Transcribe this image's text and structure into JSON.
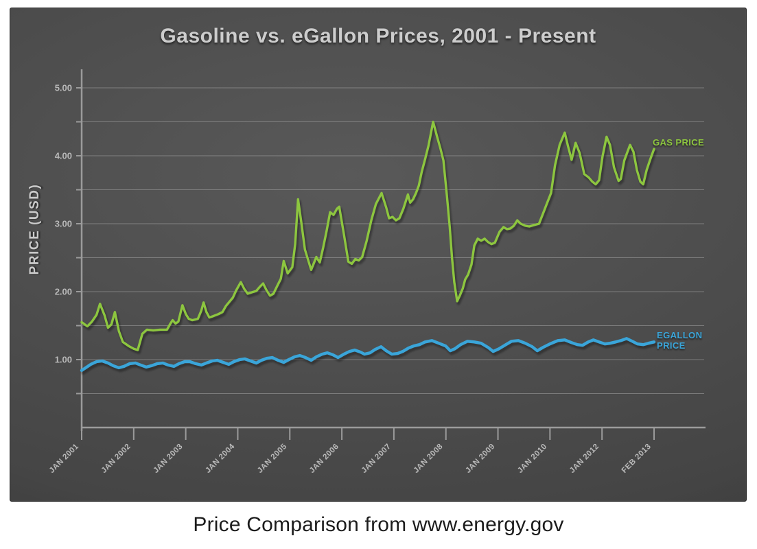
{
  "title": "Gasoline vs. eGallon Prices, 2001 - Present",
  "caption": "Price Comparison from www.energy.gov",
  "colors": {
    "gas": "#8dc63f",
    "egallon": "#3aa5d9",
    "grid": "rgba(255,255,255,0.27)",
    "axis": "#9b9b9b",
    "tick_label": "#b9b9b9",
    "title_text": "#cdcdcd",
    "page_bg": "#ffffff",
    "panel_bg": "#4a4a4a",
    "caption_text": "#1c1c1c"
  },
  "chart_data": {
    "type": "line",
    "title": "Gasoline vs. eGallon Prices, 2001 - Present",
    "xlabel": "",
    "ylabel": "PRICE (USD)",
    "ylim": [
      0,
      5.35
    ],
    "grid": true,
    "grid_step": 0.5,
    "legend_position": "end-of-line labels",
    "x_note": "12 evenly spaced ticks; year 2011 omitted between JAN 2010 and JAN 2012",
    "x_ticks": [
      "JAN 2001",
      "JAN 2002",
      "JAN 2003",
      "JAN 2004",
      "JAN 2005",
      "JAN 2006",
      "JAN 2007",
      "JAN 2008",
      "JAN 2009",
      "JAN 2010",
      "JAN 2012",
      "FEB 2013"
    ],
    "y_ticks": [
      {
        "value": 1,
        "label": "1.00"
      },
      {
        "value": 2,
        "label": "2.00"
      },
      {
        "value": 3,
        "label": "3.00"
      },
      {
        "value": 4,
        "label": "4.00"
      },
      {
        "value": 5,
        "label": "5.00"
      }
    ],
    "series": [
      {
        "name": "GAS PRICE",
        "color": "#8dc63f",
        "x_frac": [
          0.0,
          0.01,
          0.018,
          0.026,
          0.032,
          0.04,
          0.046,
          0.052,
          0.058,
          0.065,
          0.072,
          0.082,
          0.091,
          0.098,
          0.106,
          0.114,
          0.125,
          0.137,
          0.149,
          0.155,
          0.159,
          0.164,
          0.169,
          0.176,
          0.182,
          0.187,
          0.193,
          0.203,
          0.209,
          0.213,
          0.218,
          0.223,
          0.23,
          0.239,
          0.246,
          0.252,
          0.259,
          0.264,
          0.27,
          0.278,
          0.284,
          0.29,
          0.297,
          0.305,
          0.311,
          0.317,
          0.323,
          0.329,
          0.335,
          0.342,
          0.348,
          0.353,
          0.36,
          0.368,
          0.373,
          0.378,
          0.384,
          0.39,
          0.401,
          0.41,
          0.416,
          0.422,
          0.428,
          0.434,
          0.44,
          0.446,
          0.45,
          0.458,
          0.466,
          0.472,
          0.478,
          0.484,
          0.49,
          0.498,
          0.506,
          0.514,
          0.524,
          0.532,
          0.537,
          0.543,
          0.549,
          0.555,
          0.562,
          0.57,
          0.574,
          0.579,
          0.584,
          0.589,
          0.594,
          0.6,
          0.606,
          0.614,
          0.621,
          0.627,
          0.632,
          0.638,
          0.643,
          0.647,
          0.651,
          0.656,
          0.661,
          0.666,
          0.67,
          0.675,
          0.681,
          0.686,
          0.692,
          0.698,
          0.704,
          0.71,
          0.716,
          0.722,
          0.73,
          0.737,
          0.743,
          0.749,
          0.755,
          0.761,
          0.767,
          0.775,
          0.782,
          0.79,
          0.799,
          0.806,
          0.813,
          0.82,
          0.827,
          0.835,
          0.844,
          0.85,
          0.856,
          0.863,
          0.87,
          0.878,
          0.886,
          0.892,
          0.898,
          0.904,
          0.91,
          0.917,
          0.923,
          0.93,
          0.938,
          0.942,
          0.948,
          0.958,
          0.964,
          0.97,
          0.976,
          0.981,
          0.987,
          0.993,
          1.0
        ],
        "values": [
          1.55,
          1.49,
          1.56,
          1.66,
          1.82,
          1.65,
          1.47,
          1.52,
          1.7,
          1.42,
          1.26,
          1.2,
          1.16,
          1.14,
          1.38,
          1.44,
          1.43,
          1.44,
          1.44,
          1.53,
          1.58,
          1.53,
          1.56,
          1.8,
          1.67,
          1.6,
          1.58,
          1.6,
          1.72,
          1.84,
          1.7,
          1.62,
          1.64,
          1.67,
          1.7,
          1.79,
          1.86,
          1.91,
          2.02,
          2.14,
          2.04,
          1.97,
          1.99,
          2.01,
          2.07,
          2.12,
          2.02,
          1.94,
          1.97,
          2.09,
          2.19,
          2.45,
          2.27,
          2.36,
          2.7,
          3.36,
          3.0,
          2.62,
          2.32,
          2.51,
          2.43,
          2.65,
          2.9,
          3.17,
          3.13,
          3.22,
          3.25,
          2.85,
          2.44,
          2.41,
          2.48,
          2.46,
          2.51,
          2.75,
          3.05,
          3.29,
          3.45,
          3.24,
          3.08,
          3.1,
          3.05,
          3.08,
          3.22,
          3.43,
          3.31,
          3.36,
          3.45,
          3.56,
          3.76,
          3.95,
          4.15,
          4.5,
          4.28,
          4.1,
          3.93,
          3.42,
          2.95,
          2.5,
          2.14,
          1.86,
          1.95,
          2.05,
          2.18,
          2.25,
          2.4,
          2.68,
          2.78,
          2.75,
          2.78,
          2.73,
          2.7,
          2.72,
          2.88,
          2.95,
          2.92,
          2.93,
          2.97,
          3.05,
          3.0,
          2.97,
          2.96,
          2.98,
          3.0,
          3.15,
          3.3,
          3.45,
          3.86,
          4.16,
          4.34,
          4.13,
          3.94,
          4.19,
          4.04,
          3.73,
          3.68,
          3.62,
          3.58,
          3.64,
          3.99,
          4.28,
          4.16,
          3.83,
          3.63,
          3.66,
          3.93,
          4.16,
          4.06,
          3.79,
          3.62,
          3.58,
          3.79,
          3.94,
          4.1
        ]
      },
      {
        "name": "EGALLON PRICE",
        "color": "#3aa5d9",
        "x_frac": [
          0.0,
          0.007,
          0.016,
          0.026,
          0.036,
          0.046,
          0.055,
          0.065,
          0.074,
          0.084,
          0.094,
          0.103,
          0.113,
          0.122,
          0.132,
          0.142,
          0.151,
          0.161,
          0.17,
          0.18,
          0.189,
          0.199,
          0.209,
          0.218,
          0.228,
          0.237,
          0.247,
          0.257,
          0.266,
          0.276,
          0.285,
          0.295,
          0.305,
          0.314,
          0.324,
          0.333,
          0.343,
          0.353,
          0.362,
          0.372,
          0.381,
          0.391,
          0.401,
          0.41,
          0.42,
          0.429,
          0.439,
          0.448,
          0.458,
          0.468,
          0.477,
          0.487,
          0.494,
          0.504,
          0.513,
          0.523,
          0.532,
          0.542,
          0.552,
          0.561,
          0.571,
          0.58,
          0.59,
          0.6,
          0.612,
          0.624,
          0.636,
          0.644,
          0.652,
          0.662,
          0.674,
          0.686,
          0.698,
          0.71,
          0.719,
          0.729,
          0.739,
          0.751,
          0.763,
          0.775,
          0.787,
          0.796,
          0.806,
          0.818,
          0.832,
          0.844,
          0.856,
          0.866,
          0.875,
          0.885,
          0.894,
          0.904,
          0.914,
          0.923,
          0.933,
          0.942,
          0.952,
          0.962,
          0.971,
          0.981,
          0.99,
          1.0
        ],
        "values": [
          0.84,
          0.88,
          0.93,
          0.97,
          0.98,
          0.95,
          0.91,
          0.88,
          0.9,
          0.94,
          0.95,
          0.92,
          0.89,
          0.91,
          0.94,
          0.95,
          0.92,
          0.9,
          0.94,
          0.97,
          0.97,
          0.94,
          0.92,
          0.95,
          0.98,
          0.99,
          0.96,
          0.93,
          0.97,
          1.0,
          1.01,
          0.98,
          0.95,
          0.99,
          1.02,
          1.03,
          0.99,
          0.96,
          1.0,
          1.04,
          1.06,
          1.03,
          0.99,
          1.04,
          1.08,
          1.1,
          1.07,
          1.03,
          1.08,
          1.12,
          1.14,
          1.11,
          1.08,
          1.1,
          1.15,
          1.19,
          1.13,
          1.08,
          1.09,
          1.12,
          1.17,
          1.2,
          1.22,
          1.26,
          1.28,
          1.24,
          1.2,
          1.13,
          1.16,
          1.22,
          1.27,
          1.26,
          1.24,
          1.18,
          1.12,
          1.16,
          1.21,
          1.27,
          1.28,
          1.24,
          1.19,
          1.13,
          1.18,
          1.23,
          1.28,
          1.29,
          1.25,
          1.22,
          1.21,
          1.26,
          1.29,
          1.26,
          1.23,
          1.24,
          1.26,
          1.28,
          1.31,
          1.27,
          1.23,
          1.22,
          1.24,
          1.26
        ]
      }
    ]
  }
}
